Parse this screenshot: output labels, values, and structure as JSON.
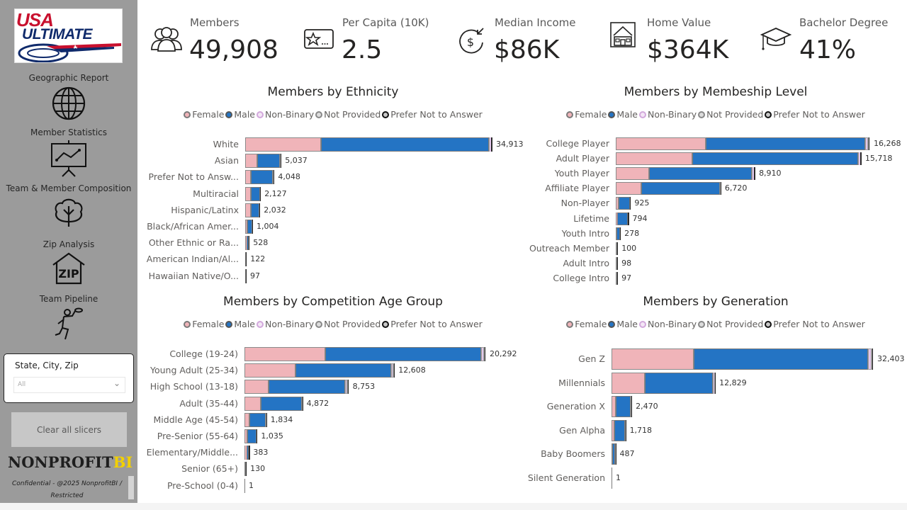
{
  "sidebar": {
    "logo": {
      "line1": "USA",
      "line2": "ULTIMATE"
    },
    "nav": [
      {
        "label": "Geographic Report",
        "icon": "globe-icon"
      },
      {
        "label": "Member Statistics",
        "icon": "presentation-chart-icon"
      },
      {
        "label": "Team & Member Composition",
        "icon": "tree-icon"
      },
      {
        "label": "Zip Analysis",
        "icon": "zip-house-icon"
      },
      {
        "label": "Team Pipeline",
        "icon": "disc-thrower-icon"
      }
    ],
    "slicer": {
      "title": "State, City, Zip",
      "value": "All"
    },
    "clear_button": "Clear all slicers",
    "brand": {
      "main": "NONPROFIT",
      "accent": "BI"
    },
    "confidential": "Confidential - @2025 NonprofitBI / Restricted"
  },
  "kpis": [
    {
      "label": "Members",
      "value": "49,908",
      "icon": "people-icon"
    },
    {
      "label": "Per Capita (10K)",
      "value": "2.5",
      "icon": "star-card-icon"
    },
    {
      "label": "Median Income",
      "value": "$86K",
      "icon": "dollar-income-icon"
    },
    {
      "label": "Home Value",
      "value": "$364K",
      "icon": "house-icon"
    },
    {
      "label": "Bachelor Degree",
      "value": "41%",
      "icon": "graduation-cap-icon"
    }
  ],
  "colors": {
    "female": "#f0b4b9",
    "male": "#2474c4",
    "non_binary": "#e4c8ec",
    "not_provided": "#d0d0d0",
    "prefer_not": "#333333"
  },
  "legend": [
    "Female",
    "Male",
    "Non-Binary",
    "Not Provided",
    "Prefer Not to Answer"
  ],
  "chart_data": [
    {
      "type": "bar",
      "orientation": "horizontal",
      "stacked": true,
      "title": "Members by Ethnicity",
      "categories": [
        "White",
        "Asian",
        "Prefer Not to Answ...",
        "Multiracial",
        "Hispanic/Latinx",
        "Black/African Amer...",
        "Other Ethnic or Ra...",
        "American Indian/Al...",
        "Hawaiian Native/O..."
      ],
      "totals": [
        34913,
        5037,
        4048,
        2127,
        2032,
        1004,
        528,
        122,
        97
      ],
      "total_labels": [
        "34,913",
        "5,037",
        "4,048",
        "2,127",
        "2,032",
        "1,004",
        "528",
        "122",
        "97"
      ],
      "series": [
        {
          "name": "Female",
          "values": [
            10730,
            1700,
            820,
            780,
            760,
            330,
            200,
            50,
            40
          ]
        },
        {
          "name": "Male",
          "values": [
            23770,
            3250,
            3120,
            1300,
            1230,
            650,
            310,
            66,
            52
          ]
        },
        {
          "name": "Non-Binary",
          "values": [
            300,
            60,
            70,
            35,
            30,
            18,
            12,
            4,
            3
          ]
        },
        {
          "name": "Not Provided",
          "values": [
            60,
            15,
            20,
            7,
            7,
            3,
            3,
            1,
            1
          ]
        },
        {
          "name": "Prefer Not to Answer",
          "values": [
            53,
            12,
            18,
            5,
            5,
            3,
            3,
            1,
            1
          ]
        }
      ],
      "legend_position": "top-center"
    },
    {
      "type": "bar",
      "orientation": "horizontal",
      "stacked": true,
      "title": "Members by Membeship Level",
      "categories": [
        "College Player",
        "Adult Player",
        "Youth Player",
        "Affiliate Player",
        "Non-Player",
        "Lifetime",
        "Youth Intro",
        "Outreach Member",
        "Adult Intro",
        "College Intro"
      ],
      "totals": [
        16268,
        15718,
        8910,
        6720,
        925,
        794,
        278,
        100,
        98,
        97
      ],
      "total_labels": [
        "16,268",
        "15,718",
        "8,910",
        "6,720",
        "925",
        "794",
        "278",
        "100",
        "98",
        "97"
      ],
      "series": [
        {
          "name": "Female",
          "values": [
            5790,
            4920,
            2150,
            1620,
            200,
            100,
            60,
            35,
            35,
            35
          ]
        },
        {
          "name": "Male",
          "values": [
            10220,
            10630,
            6570,
            5060,
            700,
            680,
            210,
            60,
            58,
            57
          ]
        },
        {
          "name": "Non-Binary",
          "values": [
            180,
            120,
            130,
            25,
            15,
            8,
            5,
            3,
            3,
            3
          ]
        },
        {
          "name": "Not Provided",
          "values": [
            40,
            28,
            30,
            10,
            6,
            3,
            2,
            1,
            1,
            1
          ]
        },
        {
          "name": "Prefer Not to Answer",
          "values": [
            38,
            20,
            30,
            5,
            4,
            3,
            1,
            1,
            1,
            1
          ]
        }
      ],
      "legend_position": "top-center"
    },
    {
      "type": "bar",
      "orientation": "horizontal",
      "stacked": true,
      "title": "Members by Competition Age Group",
      "categories": [
        "College (19-24)",
        "Young Adult (25-34)",
        "High School (13-18)",
        "Adult (35-44)",
        "Middle Age (45-54)",
        "Pre-Senior (55-64)",
        "Elementary/Middle...",
        "Senior (65+)",
        "Pre-School (0-4)"
      ],
      "totals": [
        20292,
        12608,
        8753,
        4872,
        1834,
        1035,
        383,
        130,
        1
      ],
      "total_labels": [
        "20,292",
        "12,608",
        "8,753",
        "4,872",
        "1,834",
        "1,035",
        "383",
        "130",
        "1"
      ],
      "series": [
        {
          "name": "Female",
          "values": [
            6800,
            4300,
            2000,
            1380,
            430,
            230,
            150,
            40,
            0
          ]
        },
        {
          "name": "Male",
          "values": [
            13130,
            8050,
            6500,
            3430,
            1370,
            790,
            220,
            85,
            1
          ]
        },
        {
          "name": "Non-Binary",
          "values": [
            240,
            180,
            180,
            45,
            22,
            10,
            9,
            3,
            0
          ]
        },
        {
          "name": "Not Provided",
          "values": [
            60,
            45,
            40,
            10,
            7,
            3,
            2,
            1,
            0
          ]
        },
        {
          "name": "Prefer Not to Answer",
          "values": [
            62,
            33,
            33,
            7,
            5,
            2,
            2,
            1,
            0
          ]
        }
      ],
      "legend_position": "top-center"
    },
    {
      "type": "bar",
      "orientation": "horizontal",
      "stacked": true,
      "title": "Members by Generation",
      "categories": [
        "Gen Z",
        "Millennials",
        "Generation X",
        "Gen Alpha",
        "Baby Boomers",
        "Silent Generation"
      ],
      "totals": [
        32403,
        12829,
        2470,
        1718,
        487,
        1
      ],
      "total_labels": [
        "32,403",
        "12,829",
        "2,470",
        "1,718",
        "487",
        "1"
      ],
      "series": [
        {
          "name": "Female",
          "values": [
            10180,
            4100,
            560,
            330,
            120,
            0
          ]
        },
        {
          "name": "Male",
          "values": [
            21600,
            8450,
            1850,
            1350,
            350,
            1
          ]
        },
        {
          "name": "Non-Binary",
          "values": [
            440,
            190,
            35,
            25,
            10,
            0
          ]
        },
        {
          "name": "Not Provided",
          "values": [
            90,
            50,
            15,
            8,
            4,
            0
          ]
        },
        {
          "name": "Prefer Not to Answer",
          "values": [
            93,
            39,
            10,
            5,
            3,
            0
          ]
        }
      ],
      "legend_position": "top-center"
    }
  ]
}
